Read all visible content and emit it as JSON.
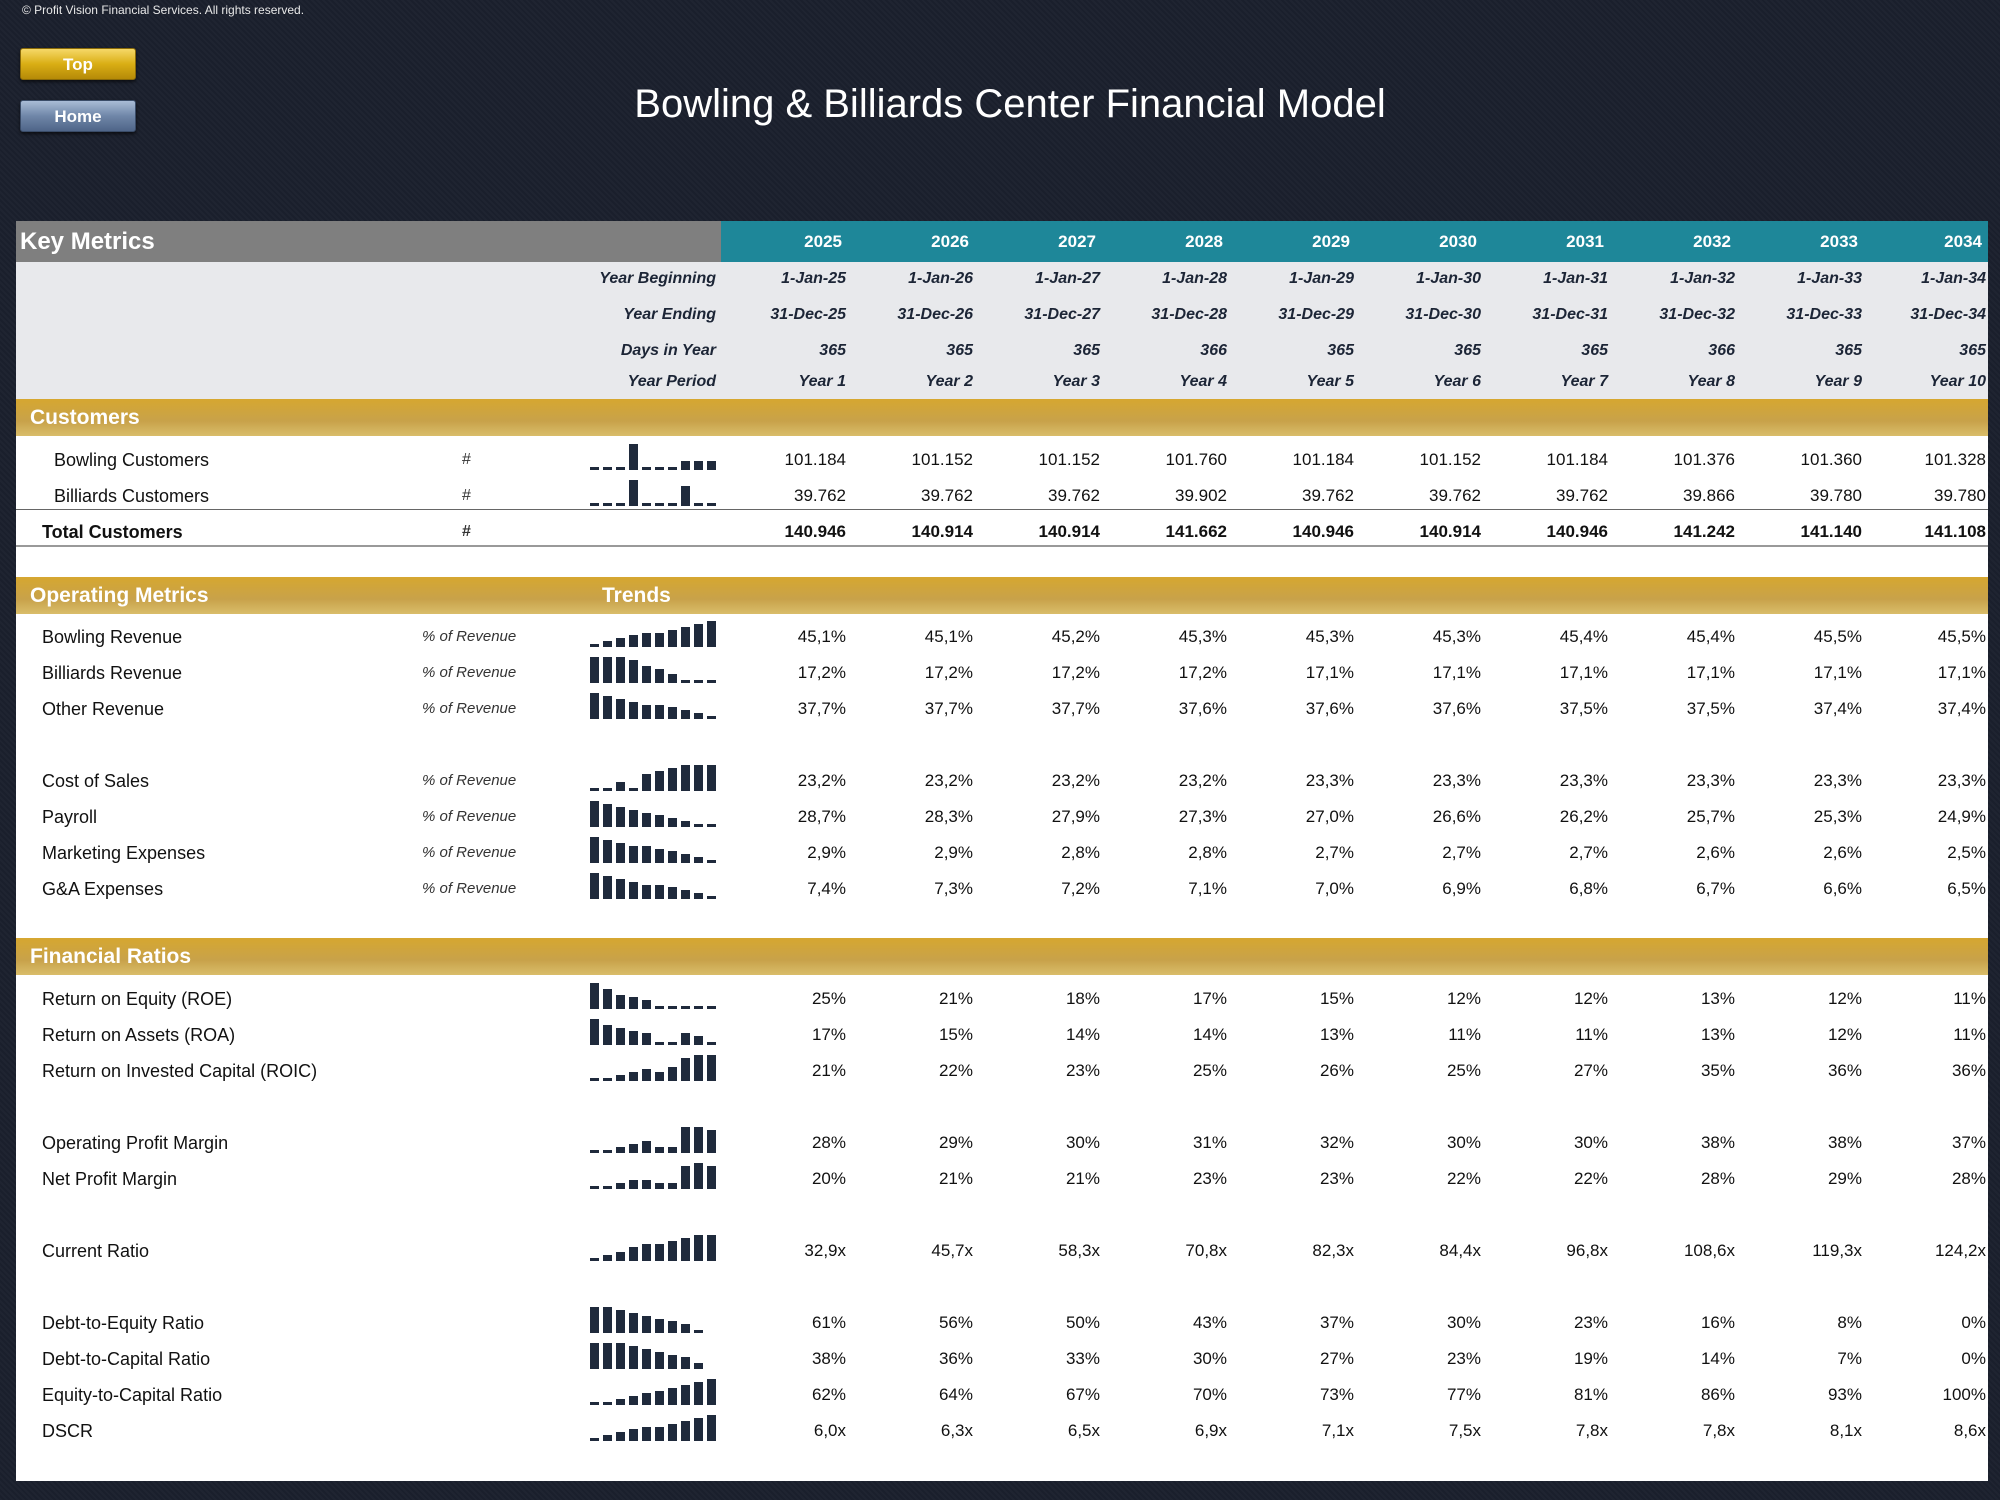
{
  "copyright": "© Profit Vision Financial Services. All rights reserved.",
  "nav": {
    "top_label": "Top",
    "home_label": "Home"
  },
  "title": "Bowling & Billiards Center Financial Model",
  "key_metrics": {
    "label": "Key Metrics",
    "years": [
      "2025",
      "2026",
      "2027",
      "2028",
      "2029",
      "2030",
      "2031",
      "2032",
      "2033",
      "2034"
    ],
    "info_rows": [
      {
        "label": "Year Beginning",
        "values": [
          "1-Jan-25",
          "1-Jan-26",
          "1-Jan-27",
          "1-Jan-28",
          "1-Jan-29",
          "1-Jan-30",
          "1-Jan-31",
          "1-Jan-32",
          "1-Jan-33",
          "1-Jan-34"
        ]
      },
      {
        "label": "Year Ending",
        "values": [
          "31-Dec-25",
          "31-Dec-26",
          "31-Dec-27",
          "31-Dec-28",
          "31-Dec-29",
          "31-Dec-30",
          "31-Dec-31",
          "31-Dec-32",
          "31-Dec-33",
          "31-Dec-34"
        ]
      },
      {
        "label": "Days in Year",
        "values": [
          "365",
          "365",
          "365",
          "366",
          "365",
          "365",
          "365",
          "366",
          "365",
          "365"
        ]
      },
      {
        "label": "Year Period",
        "values": [
          "Year 1",
          "Year 2",
          "Year 3",
          "Year 4",
          "Year 5",
          "Year 6",
          "Year 7",
          "Year 8",
          "Year 9",
          "Year 10"
        ]
      }
    ]
  },
  "customers": {
    "label": "Customers",
    "rows": [
      {
        "label": "Bowling Customers",
        "unit": "#",
        "spark": [
          1,
          1,
          1,
          9,
          1,
          1,
          1,
          3,
          3,
          3
        ],
        "values": [
          "101.184",
          "101.152",
          "101.152",
          "101.760",
          "101.184",
          "101.152",
          "101.184",
          "101.376",
          "101.360",
          "101.328"
        ]
      },
      {
        "label": "Billiards Customers",
        "unit": "#",
        "spark": [
          1,
          1,
          1,
          9,
          1,
          1,
          1,
          7,
          1,
          1
        ],
        "values": [
          "39.762",
          "39.762",
          "39.762",
          "39.902",
          "39.762",
          "39.762",
          "39.762",
          "39.866",
          "39.780",
          "39.780"
        ]
      }
    ],
    "total": {
      "label": "Total Customers",
      "unit": "#",
      "values": [
        "140.946",
        "140.914",
        "140.914",
        "141.662",
        "140.946",
        "140.914",
        "140.946",
        "141.242",
        "141.140",
        "141.108"
      ]
    }
  },
  "operating": {
    "label": "Operating Metrics",
    "trends_label": "Trends",
    "rows": [
      {
        "label": "Bowling Revenue",
        "unit": "% of Revenue",
        "spark": [
          1,
          2,
          3,
          4,
          5,
          5,
          6,
          7,
          8,
          9
        ],
        "values": [
          "45,1%",
          "45,1%",
          "45,2%",
          "45,3%",
          "45,3%",
          "45,3%",
          "45,4%",
          "45,4%",
          "45,5%",
          "45,5%"
        ]
      },
      {
        "label": "Billiards Revenue",
        "unit": "% of Revenue",
        "spark": [
          9,
          9,
          9,
          8,
          6,
          5,
          3,
          1,
          1,
          1
        ],
        "values": [
          "17,2%",
          "17,2%",
          "17,2%",
          "17,2%",
          "17,1%",
          "17,1%",
          "17,1%",
          "17,1%",
          "17,1%",
          "17,1%"
        ]
      },
      {
        "label": "Other Revenue",
        "unit": "% of Revenue",
        "spark": [
          9,
          8,
          7,
          6,
          5,
          5,
          4,
          3,
          2,
          1
        ],
        "values": [
          "37,7%",
          "37,7%",
          "37,7%",
          "37,6%",
          "37,6%",
          "37,6%",
          "37,5%",
          "37,5%",
          "37,4%",
          "37,4%"
        ]
      },
      {
        "label": "Cost of Sales",
        "unit": "% of Revenue",
        "spark": [
          1,
          1,
          3,
          1,
          6,
          7,
          8,
          9,
          9,
          9
        ],
        "values": [
          "23,2%",
          "23,2%",
          "23,2%",
          "23,2%",
          "23,3%",
          "23,3%",
          "23,3%",
          "23,3%",
          "23,3%",
          "23,3%"
        ]
      },
      {
        "label": "Payroll",
        "unit": "% of Revenue",
        "spark": [
          9,
          8,
          7,
          6,
          5,
          4,
          3,
          2,
          1,
          1
        ],
        "values": [
          "28,7%",
          "28,3%",
          "27,9%",
          "27,3%",
          "27,0%",
          "26,6%",
          "26,2%",
          "25,7%",
          "25,3%",
          "24,9%"
        ]
      },
      {
        "label": "Marketing Expenses",
        "unit": "% of Revenue",
        "spark": [
          9,
          8,
          7,
          6,
          6,
          5,
          4,
          3,
          2,
          1
        ],
        "values": [
          "2,9%",
          "2,9%",
          "2,8%",
          "2,8%",
          "2,7%",
          "2,7%",
          "2,7%",
          "2,6%",
          "2,6%",
          "2,5%"
        ]
      },
      {
        "label": "G&A Expenses",
        "unit": "% of Revenue",
        "spark": [
          9,
          8,
          7,
          6,
          5,
          5,
          4,
          3,
          2,
          1
        ],
        "values": [
          "7,4%",
          "7,3%",
          "7,2%",
          "7,1%",
          "7,0%",
          "6,9%",
          "6,8%",
          "6,7%",
          "6,6%",
          "6,5%"
        ]
      }
    ]
  },
  "ratios": {
    "label": "Financial Ratios",
    "rows": [
      {
        "label": "Return on Equity (ROE)",
        "spark": [
          9,
          7,
          5,
          4,
          3,
          1,
          1,
          1,
          1,
          1
        ],
        "values": [
          "25%",
          "21%",
          "18%",
          "17%",
          "15%",
          "12%",
          "12%",
          "13%",
          "12%",
          "11%"
        ]
      },
      {
        "label": "Return on Assets (ROA)",
        "spark": [
          9,
          7,
          6,
          5,
          4,
          1,
          1,
          4,
          3,
          1
        ],
        "values": [
          "17%",
          "15%",
          "14%",
          "14%",
          "13%",
          "11%",
          "11%",
          "13%",
          "12%",
          "11%"
        ]
      },
      {
        "label": "Return on Invested Capital (ROIC)",
        "spark": [
          1,
          1,
          2,
          3,
          4,
          3,
          5,
          8,
          9,
          9
        ],
        "values": [
          "21%",
          "22%",
          "23%",
          "25%",
          "26%",
          "25%",
          "27%",
          "35%",
          "36%",
          "36%"
        ]
      },
      {
        "label": "Operating Profit Margin",
        "spark": [
          1,
          1,
          2,
          3,
          4,
          2,
          2,
          9,
          9,
          8
        ],
        "values": [
          "28%",
          "29%",
          "30%",
          "31%",
          "32%",
          "30%",
          "30%",
          "38%",
          "38%",
          "37%"
        ]
      },
      {
        "label": "Net Profit Margin",
        "spark": [
          1,
          1,
          2,
          3,
          3,
          2,
          2,
          8,
          9,
          8
        ],
        "values": [
          "20%",
          "21%",
          "21%",
          "23%",
          "23%",
          "22%",
          "22%",
          "28%",
          "29%",
          "28%"
        ]
      },
      {
        "label": "Current Ratio",
        "spark": [
          1,
          2,
          3,
          5,
          6,
          6,
          7,
          8,
          9,
          9
        ],
        "values": [
          "32,9x",
          "45,7x",
          "58,3x",
          "70,8x",
          "82,3x",
          "84,4x",
          "96,8x",
          "108,6x",
          "119,3x",
          "124,2x"
        ]
      },
      {
        "label": "Debt-to-Equity Ratio",
        "spark": [
          9,
          9,
          8,
          7,
          6,
          5,
          4,
          3,
          1,
          0
        ],
        "values": [
          "61%",
          "56%",
          "50%",
          "43%",
          "37%",
          "30%",
          "23%",
          "16%",
          "8%",
          "0%"
        ]
      },
      {
        "label": "Debt-to-Capital Ratio",
        "spark": [
          9,
          9,
          9,
          8,
          7,
          6,
          5,
          4,
          2,
          0
        ],
        "values": [
          "38%",
          "36%",
          "33%",
          "30%",
          "27%",
          "23%",
          "19%",
          "14%",
          "7%",
          "0%"
        ]
      },
      {
        "label": "Equity-to-Capital Ratio",
        "spark": [
          1,
          1,
          2,
          3,
          4,
          5,
          6,
          7,
          8,
          9
        ],
        "values": [
          "62%",
          "64%",
          "67%",
          "70%",
          "73%",
          "77%",
          "81%",
          "86%",
          "93%",
          "100%"
        ]
      },
      {
        "label": "DSCR",
        "spark": [
          1,
          2,
          3,
          4,
          5,
          5,
          6,
          7,
          8,
          9
        ],
        "values": [
          "6,0x",
          "6,3x",
          "6,5x",
          "6,9x",
          "7,1x",
          "7,5x",
          "7,8x",
          "7,8x",
          "8,1x",
          "8,6x"
        ]
      }
    ]
  }
}
